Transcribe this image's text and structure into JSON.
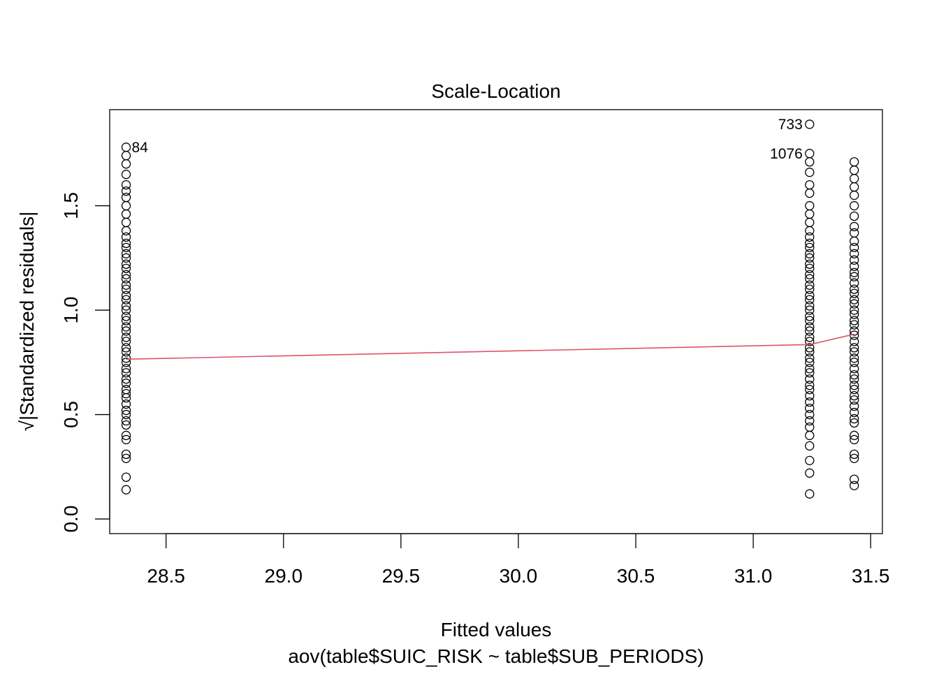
{
  "chart_data": {
    "type": "scatter",
    "title": "Scale-Location",
    "xlabel": "Fitted values",
    "ylabel": "√|Standardized residuals|",
    "subtitle": "aov(table$SUIC_RISK ~ table$SUB_PERIODS)",
    "xlim": [
      28.26,
      31.55
    ],
    "ylim": [
      -0.07,
      1.96
    ],
    "x_ticks": [
      28.5,
      29.0,
      29.5,
      30.0,
      30.5,
      31.0,
      31.5
    ],
    "x_tick_labels": [
      "28.5",
      "29.0",
      "29.5",
      "30.0",
      "30.5",
      "31.0",
      "31.5"
    ],
    "y_ticks": [
      0.0,
      0.5,
      1.0,
      1.5
    ],
    "y_tick_labels": [
      "0.0",
      "0.5",
      "1.0",
      "1.5"
    ],
    "grid": false,
    "colors": {
      "points": "#000000",
      "smoother": "#DF536B",
      "axes": "#000000",
      "background": "#FFFFFF"
    },
    "series": [
      {
        "x": 28.33,
        "y": [
          0.14,
          0.2,
          0.29,
          0.31,
          0.38,
          0.4,
          0.45,
          0.47,
          0.5,
          0.52,
          0.55,
          0.58,
          0.6,
          0.62,
          0.65,
          0.67,
          0.7,
          0.72,
          0.75,
          0.77,
          0.8,
          0.82,
          0.85,
          0.87,
          0.9,
          0.92,
          0.95,
          0.97,
          1.0,
          1.02,
          1.05,
          1.07,
          1.1,
          1.12,
          1.15,
          1.17,
          1.2,
          1.22,
          1.25,
          1.27,
          1.3,
          1.32,
          1.35,
          1.38,
          1.42,
          1.46,
          1.5,
          1.54,
          1.57,
          1.6,
          1.65,
          1.7,
          1.74,
          1.78
        ]
      },
      {
        "x": 31.24,
        "y": [
          0.12,
          0.22,
          0.28,
          0.35,
          0.4,
          0.44,
          0.47,
          0.5,
          0.53,
          0.56,
          0.59,
          0.62,
          0.64,
          0.67,
          0.7,
          0.72,
          0.75,
          0.77,
          0.8,
          0.82,
          0.85,
          0.87,
          0.9,
          0.92,
          0.95,
          0.97,
          1.0,
          1.02,
          1.05,
          1.07,
          1.1,
          1.12,
          1.15,
          1.17,
          1.2,
          1.22,
          1.25,
          1.27,
          1.3,
          1.32,
          1.35,
          1.38,
          1.42,
          1.46,
          1.5,
          1.56,
          1.6,
          1.66,
          1.71,
          1.75,
          1.89
        ]
      },
      {
        "x": 31.43,
        "y": [
          0.16,
          0.19,
          0.29,
          0.31,
          0.38,
          0.4,
          0.46,
          0.48,
          0.51,
          0.54,
          0.57,
          0.59,
          0.62,
          0.64,
          0.67,
          0.69,
          0.72,
          0.75,
          0.77,
          0.8,
          0.82,
          0.85,
          0.88,
          0.9,
          0.93,
          0.95,
          0.98,
          1.0,
          1.03,
          1.05,
          1.08,
          1.1,
          1.13,
          1.16,
          1.18,
          1.21,
          1.24,
          1.27,
          1.3,
          1.33,
          1.37,
          1.4,
          1.45,
          1.5,
          1.55,
          1.59,
          1.63,
          1.67,
          1.71
        ]
      }
    ],
    "smoother": {
      "x": [
        28.33,
        31.24,
        31.43
      ],
      "y": [
        0.765,
        0.835,
        0.885
      ]
    },
    "point_labels": [
      {
        "text": "84",
        "x": 28.33,
        "y": 1.78,
        "side": "right"
      },
      {
        "text": "733",
        "x": 31.24,
        "y": 1.89,
        "side": "left"
      },
      {
        "text": "1076",
        "x": 31.24,
        "y": 1.75,
        "side": "left"
      }
    ]
  }
}
